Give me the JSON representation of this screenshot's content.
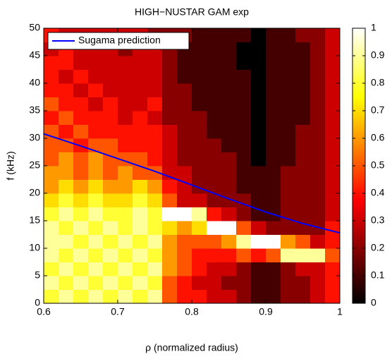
{
  "chart_data": {
    "type": "heatmap",
    "title": "HIGH−NUSTAR GAM exp",
    "xlabel": "ρ (normalized radius)",
    "ylabel": "f (kHz)",
    "colormap": "hot",
    "clim": [
      0,
      1
    ],
    "cticks": [
      0,
      0.1,
      0.2,
      0.3,
      0.4,
      0.5,
      0.6,
      0.7,
      0.8,
      0.9,
      1
    ],
    "xlim": [
      0.6,
      1
    ],
    "xticks": [
      0.6,
      0.7,
      0.8,
      0.9,
      1
    ],
    "ylim": [
      0,
      50
    ],
    "yticks": [
      0,
      5,
      10,
      15,
      20,
      25,
      30,
      35,
      40,
      45,
      50
    ],
    "xbins": [
      0.6,
      0.62,
      0.64,
      0.66,
      0.68,
      0.7,
      0.72,
      0.74,
      0.76,
      0.78,
      0.8,
      0.82,
      0.84,
      0.86,
      0.88,
      0.9,
      0.92,
      0.94,
      0.96,
      0.98,
      1
    ],
    "ybins": [
      0,
      2.5,
      5,
      7.5,
      10,
      12.5,
      15,
      17.5,
      20,
      22.5,
      25,
      27.5,
      30,
      32.5,
      35,
      37.5,
      40,
      42.5,
      45,
      47.5,
      50
    ],
    "z": [
      [
        0.8,
        0.9,
        0.8,
        0.9,
        0.8,
        0.9,
        0.8,
        0.9,
        0.5,
        0.4,
        0.4,
        0.3,
        0.3,
        0.2,
        0.1,
        0.1,
        0.2,
        0.2,
        0.3,
        0.4
      ],
      [
        0.9,
        0.8,
        0.9,
        0.8,
        0.9,
        0.8,
        0.9,
        0.8,
        0.5,
        0.4,
        0.3,
        0.3,
        0.2,
        0.2,
        0.1,
        0.1,
        0.2,
        0.2,
        0.3,
        0.4
      ],
      [
        0.8,
        0.9,
        0.8,
        0.9,
        0.8,
        0.9,
        0.8,
        0.9,
        0.6,
        0.5,
        0.4,
        0.3,
        0.3,
        0.2,
        0.1,
        0.1,
        0.2,
        0.3,
        0.3,
        0.4
      ],
      [
        0.9,
        0.8,
        0.9,
        0.8,
        0.9,
        0.8,
        0.9,
        0.8,
        0.6,
        0.5,
        0.4,
        0.4,
        0.4,
        0.5,
        0.4,
        0.5,
        0.9,
        0.9,
        0.9,
        0.5
      ],
      [
        0.9,
        0.9,
        0.8,
        0.9,
        0.8,
        0.9,
        0.8,
        0.9,
        0.6,
        0.5,
        0.5,
        0.5,
        0.6,
        0.9,
        1,
        1,
        0.6,
        0.5,
        0.3,
        0.4
      ],
      [
        0.9,
        0.8,
        0.9,
        0.8,
        0.9,
        0.8,
        0.9,
        0.8,
        0.7,
        0.6,
        0.7,
        1,
        1,
        0.5,
        0.3,
        0.2,
        0.2,
        0.2,
        0.2,
        0.4
      ],
      [
        0.8,
        0.9,
        0.8,
        0.9,
        0.8,
        0.8,
        0.9,
        0.8,
        1,
        1,
        0.9,
        0.4,
        0.3,
        0.2,
        0.1,
        0.1,
        0.2,
        0.2,
        0.2,
        0.3
      ],
      [
        0.7,
        0.8,
        0.7,
        0.8,
        0.7,
        0.7,
        0.8,
        0.7,
        0.5,
        0.3,
        0.3,
        0.2,
        0.2,
        0.2,
        0.1,
        0.1,
        0.2,
        0.2,
        0.2,
        0.3
      ],
      [
        0.6,
        0.7,
        0.6,
        0.7,
        0.6,
        0.6,
        0.7,
        0.6,
        0.4,
        0.3,
        0.2,
        0.2,
        0.2,
        0.1,
        0.1,
        0.1,
        0.2,
        0.2,
        0.2,
        0.3
      ],
      [
        0.6,
        0.6,
        0.5,
        0.6,
        0.5,
        0.6,
        0.5,
        0.5,
        0.3,
        0.3,
        0.2,
        0.2,
        0.2,
        0.1,
        0.1,
        0.1,
        0.2,
        0.2,
        0.2,
        0.3
      ],
      [
        0.5,
        0.6,
        0.5,
        0.6,
        0.5,
        0.5,
        0.5,
        0.4,
        0.3,
        0.2,
        0.2,
        0.2,
        0.2,
        0.1,
        0,
        0.1,
        0.1,
        0.2,
        0.2,
        0.3
      ],
      [
        0.5,
        0.5,
        0.4,
        0.5,
        0.5,
        0.4,
        0.4,
        0.4,
        0.3,
        0.2,
        0.2,
        0.2,
        0.1,
        0.1,
        0,
        0.1,
        0.1,
        0.2,
        0.2,
        0.3
      ],
      [
        0.5,
        0.4,
        0.5,
        0.4,
        0.4,
        0.4,
        0.4,
        0.4,
        0.3,
        0.2,
        0.2,
        0.1,
        0.1,
        0.1,
        0,
        0.1,
        0.1,
        0.2,
        0.2,
        0.3
      ],
      [
        0.4,
        0.5,
        0.4,
        0.4,
        0.4,
        0.3,
        0.4,
        0.3,
        0.2,
        0.2,
        0.2,
        0.1,
        0.1,
        0.1,
        0,
        0.1,
        0.1,
        0.1,
        0.2,
        0.3
      ],
      [
        0.5,
        0.4,
        0.4,
        0.3,
        0.4,
        0.3,
        0.3,
        0.4,
        0.2,
        0.2,
        0.1,
        0.1,
        0.1,
        0.1,
        0,
        0.1,
        0.1,
        0.1,
        0.2,
        0.3
      ],
      [
        0.4,
        0.4,
        0.3,
        0.4,
        0.3,
        0.3,
        0.3,
        0.3,
        0.2,
        0.2,
        0.1,
        0.1,
        0.1,
        0.1,
        0,
        0.1,
        0.1,
        0.1,
        0.2,
        0.3
      ],
      [
        0.4,
        0.3,
        0.4,
        0.3,
        0.3,
        0.3,
        0.3,
        0.3,
        0.2,
        0.1,
        0.1,
        0.1,
        0.1,
        0.1,
        0,
        0.1,
        0.1,
        0.1,
        0.2,
        0.3
      ],
      [
        0.4,
        0.4,
        0.3,
        0.3,
        0.3,
        0.3,
        0.3,
        0.3,
        0.2,
        0.1,
        0.1,
        0.1,
        0.1,
        0,
        0,
        0.1,
        0.1,
        0.1,
        0.2,
        0.3
      ],
      [
        0.3,
        0.4,
        0.3,
        0.3,
        0.3,
        0.2,
        0.3,
        0.3,
        0.2,
        0.1,
        0.1,
        0.1,
        0.1,
        0,
        0,
        0.1,
        0.1,
        0.1,
        0.2,
        0.3
      ],
      [
        0.4,
        0.3,
        0.3,
        0.3,
        0.3,
        0.3,
        0.3,
        0.2,
        0.2,
        0.2,
        0.1,
        0.1,
        0.1,
        0.1,
        0,
        0.1,
        0.1,
        0.2,
        0.2,
        0.3
      ]
    ],
    "series": [
      {
        "name": "Sugama prediction",
        "color": "#0000ff",
        "x": [
          0.6,
          0.65,
          0.7,
          0.75,
          0.8,
          0.85,
          0.9,
          0.95,
          1
        ],
        "values": [
          30.8,
          28.6,
          26.3,
          24,
          21.5,
          19,
          16.6,
          14.5,
          12.8
        ]
      }
    ],
    "legend": "upper left"
  }
}
